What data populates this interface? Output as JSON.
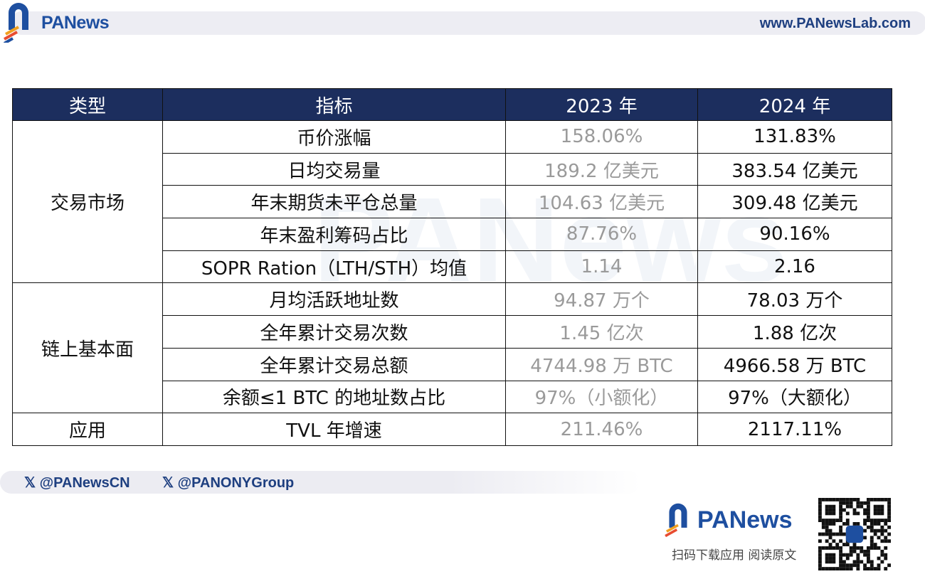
{
  "header": {
    "brand": "PANews",
    "site": "www.PANewsLab.com"
  },
  "table": {
    "headers": [
      "类型",
      "指标",
      "2023 年",
      "2024 年"
    ],
    "groups": [
      {
        "type": "交易市场",
        "rows": [
          [
            "币价涨幅",
            "158.06%",
            "131.83%"
          ],
          [
            "日均交易量",
            "189.2 亿美元",
            "383.54 亿美元"
          ],
          [
            "年末期货未平仓总量",
            "104.63 亿美元",
            "309.48 亿美元"
          ],
          [
            "年末盈利筹码占比",
            "87.76%",
            "90.16%"
          ],
          [
            "SOPR Ration（LTH/STH）均值",
            "1.14",
            "2.16"
          ]
        ]
      },
      {
        "type": "链上基本面",
        "rows": [
          [
            "月均活跃地址数",
            "94.87 万个",
            "78.03 万个"
          ],
          [
            "全年累计交易次数",
            "1.45 亿次",
            "1.88 亿次"
          ],
          [
            "全年累计交易总额",
            "4744.98 万 BTC",
            "4966.58 万 BTC"
          ],
          [
            "余额≤1 BTC 的地址数占比",
            "97%（小额化）",
            "97%（大额化）"
          ]
        ]
      },
      {
        "type": "应用",
        "rows": [
          [
            "TVL 年增速",
            "211.46%",
            "2117.11%"
          ]
        ]
      }
    ]
  },
  "footer": {
    "social": [
      "@PANewsCN",
      "@PANONYGroup"
    ],
    "brand": "PANews",
    "scan_text": "扫码下载应用  阅读原文"
  },
  "colors": {
    "header_bg": "#1c2e5e",
    "brand": "#1e4fa0",
    "muted": "#9a9a9a"
  }
}
